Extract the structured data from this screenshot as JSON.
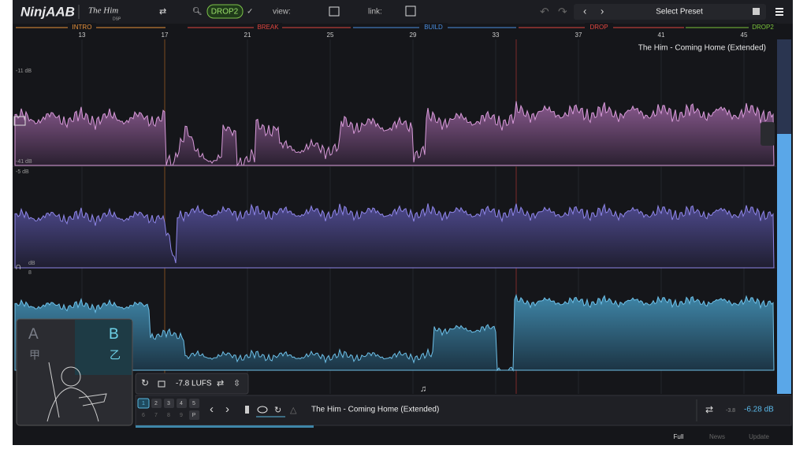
{
  "header": {
    "logo": "NinjAAB",
    "brand": "The Him",
    "brand_sub": "DSP",
    "preset_chip": "DROP2",
    "view_label": "view:",
    "link_label": "link:",
    "preset_select": "Select Preset"
  },
  "timeline": {
    "sections": [
      "INTRO",
      "BREAK",
      "BUILD",
      "DROP",
      "DROP2"
    ],
    "bars": [
      13,
      17,
      21,
      25,
      29,
      33,
      37,
      41,
      45
    ]
  },
  "track_title": "The Him - Coming Home (Extended)",
  "lanes": {
    "top_1": "-11 dB",
    "bottom_1": "-41 dB",
    "top_2": "-5 dB",
    "top_3": "dB",
    "sub_3": "8"
  },
  "ab_panel": {
    "a": "A",
    "b": "B",
    "a_sub": "甲",
    "b_sub": "乙"
  },
  "loudness": "-7.8 LUFS",
  "slots": [
    "1",
    "2",
    "3",
    "4",
    "5",
    "6",
    "7",
    "8",
    "9",
    "P"
  ],
  "player": {
    "title": "The Him - Coming Home (Extended)",
    "gain_small": "-3.8",
    "gain": "-6.28 dB"
  },
  "footer": [
    "Full",
    "News",
    "Update"
  ]
}
